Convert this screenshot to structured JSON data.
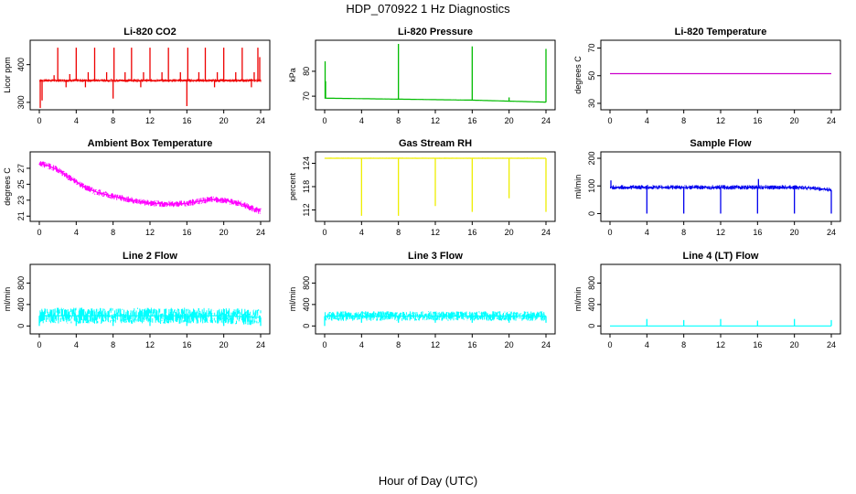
{
  "figure": {
    "title": "HDP_070922  1 Hz Diagnostics",
    "xlabel": "Hour of Day (UTC)"
  },
  "chart_data": [
    {
      "id": "co2",
      "type": "line",
      "title": "Li-820 CO2",
      "ylabel": "Licor ppm",
      "color": "#ee0000",
      "xlim": [
        0,
        24
      ],
      "xticks": [
        0,
        4,
        8,
        12,
        16,
        20,
        24
      ],
      "ylim": [
        290,
        455
      ],
      "yticks": [
        300,
        400
      ],
      "baseline": 358,
      "noise": 4,
      "spikes": [
        {
          "x": 0.1,
          "y": 285
        },
        {
          "x": 0.3,
          "y": 305
        },
        {
          "x": 1.6,
          "y": 372
        },
        {
          "x": 2.0,
          "y": 445
        },
        {
          "x": 2.9,
          "y": 340
        },
        {
          "x": 3.3,
          "y": 375
        },
        {
          "x": 4.0,
          "y": 445
        },
        {
          "x": 5.0,
          "y": 340
        },
        {
          "x": 5.3,
          "y": 380
        },
        {
          "x": 6.0,
          "y": 445
        },
        {
          "x": 7.3,
          "y": 380
        },
        {
          "x": 8.0,
          "y": 310
        },
        {
          "x": 8.1,
          "y": 445
        },
        {
          "x": 9.3,
          "y": 380
        },
        {
          "x": 10.0,
          "y": 445
        },
        {
          "x": 11.0,
          "y": 340
        },
        {
          "x": 11.3,
          "y": 380
        },
        {
          "x": 12.0,
          "y": 445
        },
        {
          "x": 13.3,
          "y": 380
        },
        {
          "x": 14.0,
          "y": 445
        },
        {
          "x": 15.3,
          "y": 380
        },
        {
          "x": 16.0,
          "y": 290
        },
        {
          "x": 16.1,
          "y": 445
        },
        {
          "x": 17.3,
          "y": 380
        },
        {
          "x": 18.0,
          "y": 445
        },
        {
          "x": 19.0,
          "y": 340
        },
        {
          "x": 19.3,
          "y": 380
        },
        {
          "x": 20.0,
          "y": 445
        },
        {
          "x": 21.3,
          "y": 380
        },
        {
          "x": 22.0,
          "y": 445
        },
        {
          "x": 23.0,
          "y": 340
        },
        {
          "x": 23.3,
          "y": 380
        },
        {
          "x": 23.7,
          "y": 445
        },
        {
          "x": 23.9,
          "y": 420
        }
      ]
    },
    {
      "id": "pressure",
      "type": "line",
      "title": "Li-820 Pressure",
      "ylabel": "kPa",
      "color": "#00bb00",
      "xlim": [
        0,
        24
      ],
      "xticks": [
        0,
        4,
        8,
        12,
        16,
        20,
        24
      ],
      "ylim": [
        66,
        91
      ],
      "yticks": [
        70,
        80
      ],
      "trend": [
        {
          "x": 0,
          "y": 69.2
        },
        {
          "x": 8,
          "y": 68.8
        },
        {
          "x": 16,
          "y": 68.4
        },
        {
          "x": 20,
          "y": 68.0
        },
        {
          "x": 24,
          "y": 67.6
        }
      ],
      "noise": 0.15,
      "spikes": [
        {
          "x": 0.05,
          "y": 84
        },
        {
          "x": 0.1,
          "y": 76
        },
        {
          "x": 8.0,
          "y": 91
        },
        {
          "x": 16.0,
          "y": 90
        },
        {
          "x": 20.0,
          "y": 69.5
        },
        {
          "x": 24.0,
          "y": 89
        }
      ]
    },
    {
      "id": "licor-temp",
      "type": "line",
      "title": "Li-820 Temperature",
      "ylabel": "degrees C",
      "color": "#cc00cc",
      "xlim": [
        0,
        24
      ],
      "xticks": [
        0,
        4,
        8,
        12,
        16,
        20,
        24
      ],
      "ylim": [
        28,
        73
      ],
      "yticks": [
        30,
        50,
        70
      ],
      "trend": [
        {
          "x": 0,
          "y": 51.5
        },
        {
          "x": 24,
          "y": 51.5
        }
      ],
      "noise": 0,
      "spikes": []
    },
    {
      "id": "box-temp",
      "type": "line",
      "title": "Ambient Box Temperature",
      "ylabel": "degrees C",
      "color": "#ff00ff",
      "xlim": [
        0,
        24
      ],
      "xticks": [
        0,
        4,
        8,
        12,
        16,
        20,
        24
      ],
      "ylim": [
        20.8,
        28.6
      ],
      "yticks": [
        21,
        23,
        25,
        27
      ],
      "trend": [
        {
          "x": 0,
          "y": 27.6
        },
        {
          "x": 1,
          "y": 27.3
        },
        {
          "x": 2,
          "y": 26.8
        },
        {
          "x": 3,
          "y": 26.0
        },
        {
          "x": 4,
          "y": 25.3
        },
        {
          "x": 5,
          "y": 24.6
        },
        {
          "x": 6,
          "y": 24.1
        },
        {
          "x": 8,
          "y": 23.5
        },
        {
          "x": 10,
          "y": 23.0
        },
        {
          "x": 12,
          "y": 22.6
        },
        {
          "x": 14,
          "y": 22.5
        },
        {
          "x": 16,
          "y": 22.6
        },
        {
          "x": 18,
          "y": 23.0
        },
        {
          "x": 19,
          "y": 23.1
        },
        {
          "x": 20,
          "y": 23.0
        },
        {
          "x": 22,
          "y": 22.5
        },
        {
          "x": 23,
          "y": 22.0
        },
        {
          "x": 24,
          "y": 21.6
        }
      ],
      "noise": 0.4,
      "spikes": []
    },
    {
      "id": "rh",
      "type": "line",
      "title": "Gas Stream RH",
      "ylabel": "percent",
      "color": "#eeee00",
      "xlim": [
        0,
        24
      ],
      "xticks": [
        0,
        4,
        8,
        12,
        16,
        20,
        24
      ],
      "ylim": [
        110,
        126
      ],
      "yticks": [
        112,
        118,
        124
      ],
      "trend": [
        {
          "x": 0,
          "y": 125.3
        },
        {
          "x": 24,
          "y": 125.3
        }
      ],
      "noise": 0.15,
      "spikes": [
        {
          "x": 4.0,
          "y": 110.5
        },
        {
          "x": 8.0,
          "y": 110.5
        },
        {
          "x": 12.0,
          "y": 113
        },
        {
          "x": 16.0,
          "y": 111.5
        },
        {
          "x": 20.0,
          "y": 115
        },
        {
          "x": 24.0,
          "y": 111.5
        }
      ]
    },
    {
      "id": "sample-flow",
      "type": "line",
      "title": "Sample Flow",
      "ylabel": "ml/min",
      "color": "#0000ee",
      "xlim": [
        0,
        24
      ],
      "xticks": [
        0,
        4,
        8,
        12,
        16,
        20,
        24
      ],
      "ylim": [
        -15,
        210
      ],
      "yticks": [
        0,
        100,
        200
      ],
      "trend": [
        {
          "x": 0,
          "y": 95
        },
        {
          "x": 20,
          "y": 95
        },
        {
          "x": 22,
          "y": 92
        },
        {
          "x": 24,
          "y": 85
        }
      ],
      "noise": 8,
      "spikes": [
        {
          "x": 0.1,
          "y": 120
        },
        {
          "x": 4.0,
          "y": 0
        },
        {
          "x": 8.0,
          "y": 0
        },
        {
          "x": 12.0,
          "y": 0
        },
        {
          "x": 16.0,
          "y": 0
        },
        {
          "x": 16.1,
          "y": 125
        },
        {
          "x": 20.0,
          "y": 0
        },
        {
          "x": 24.0,
          "y": 0
        }
      ]
    },
    {
      "id": "line2",
      "type": "line",
      "title": "Line 2 Flow",
      "ylabel": "ml/min",
      "color": "#00ffff",
      "xlim": [
        0,
        24
      ],
      "xticks": [
        0,
        4,
        8,
        12,
        16,
        20,
        24
      ],
      "ylim": [
        -80,
        1080
      ],
      "yticks": [
        0,
        400,
        800
      ],
      "trend": [
        {
          "x": 0,
          "y": 190
        },
        {
          "x": 20,
          "y": 190
        },
        {
          "x": 24,
          "y": 160
        }
      ],
      "noise": 150,
      "spikes": [
        {
          "x": 0.0,
          "y": 0
        },
        {
          "x": 4.0,
          "y": 0
        },
        {
          "x": 8.0,
          "y": 0
        },
        {
          "x": 12.0,
          "y": 0
        },
        {
          "x": 16.0,
          "y": 0
        },
        {
          "x": 20.0,
          "y": 0
        },
        {
          "x": 24.0,
          "y": 0
        }
      ]
    },
    {
      "id": "line3",
      "type": "line",
      "title": "Line 3 Flow",
      "ylabel": "ml/min",
      "color": "#00ffff",
      "xlim": [
        0,
        24
      ],
      "xticks": [
        0,
        4,
        8,
        12,
        16,
        20,
        24
      ],
      "ylim": [
        -80,
        1080
      ],
      "yticks": [
        0,
        400,
        800
      ],
      "trend": [
        {
          "x": 0,
          "y": 185
        },
        {
          "x": 24,
          "y": 185
        }
      ],
      "noise": 90,
      "spikes": [
        {
          "x": 0.0,
          "y": 0
        },
        {
          "x": 4.0,
          "y": 60
        },
        {
          "x": 8.0,
          "y": 60
        },
        {
          "x": 12.0,
          "y": 60
        },
        {
          "x": 16.0,
          "y": 60
        },
        {
          "x": 20.0,
          "y": 60
        },
        {
          "x": 24.0,
          "y": 60
        }
      ]
    },
    {
      "id": "line4",
      "type": "line",
      "title": "Line 4 (LT) Flow",
      "ylabel": "ml/min",
      "color": "#00ffff",
      "xlim": [
        0,
        24
      ],
      "xticks": [
        0,
        4,
        8,
        12,
        16,
        20,
        24
      ],
      "ylim": [
        -80,
        1080
      ],
      "yticks": [
        0,
        400,
        800
      ],
      "trend": [
        {
          "x": 0,
          "y": 0
        },
        {
          "x": 24,
          "y": 0
        }
      ],
      "noise": 0,
      "spikes": [
        {
          "x": 4.0,
          "y": 130
        },
        {
          "x": 8.0,
          "y": 110
        },
        {
          "x": 12.0,
          "y": 130
        },
        {
          "x": 16.0,
          "y": 100
        },
        {
          "x": 20.0,
          "y": 130
        },
        {
          "x": 24.0,
          "y": 110
        }
      ]
    }
  ]
}
